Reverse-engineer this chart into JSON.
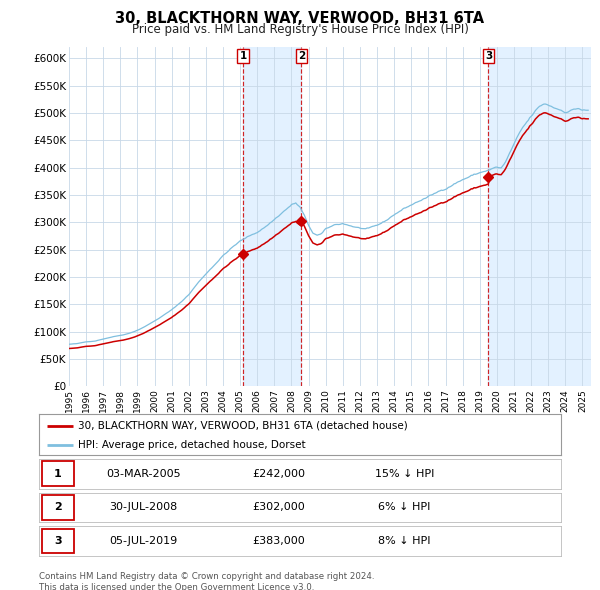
{
  "title": "30, BLACKTHORN WAY, VERWOOD, BH31 6TA",
  "subtitle": "Price paid vs. HM Land Registry's House Price Index (HPI)",
  "legend_line1": "30, BLACKTHORN WAY, VERWOOD, BH31 6TA (detached house)",
  "legend_line2": "HPI: Average price, detached house, Dorset",
  "transactions": [
    {
      "num": 1,
      "date": "03-MAR-2005",
      "year": 2005.17,
      "price": 242000,
      "pct": "15%",
      "dir": "↓"
    },
    {
      "num": 2,
      "date": "30-JUL-2008",
      "year": 2008.58,
      "price": 302000,
      "pct": "6%",
      "dir": "↓"
    },
    {
      "num": 3,
      "date": "05-JUL-2019",
      "year": 2019.51,
      "price": 383000,
      "pct": "8%",
      "dir": "↓"
    }
  ],
  "footnote1": "Contains HM Land Registry data © Crown copyright and database right 2024.",
  "footnote2": "This data is licensed under the Open Government Licence v3.0.",
  "hpi_color": "#7fbfdf",
  "price_color": "#cc0000",
  "background_color": "#ffffff",
  "grid_color": "#c8d8e8",
  "shade_color": "#ddeeff",
  "ylim_min": 0,
  "ylim_max": 620000,
  "xmin": 1995.0,
  "xmax": 2025.5,
  "yticks": [
    0,
    50000,
    100000,
    150000,
    200000,
    250000,
    300000,
    350000,
    400000,
    450000,
    500000,
    550000,
    600000
  ],
  "xtick_years": [
    1995,
    1996,
    1997,
    1998,
    1999,
    2000,
    2001,
    2002,
    2003,
    2004,
    2005,
    2006,
    2007,
    2008,
    2009,
    2010,
    2011,
    2012,
    2013,
    2014,
    2015,
    2016,
    2017,
    2018,
    2019,
    2020,
    2021,
    2022,
    2023,
    2024,
    2025
  ]
}
